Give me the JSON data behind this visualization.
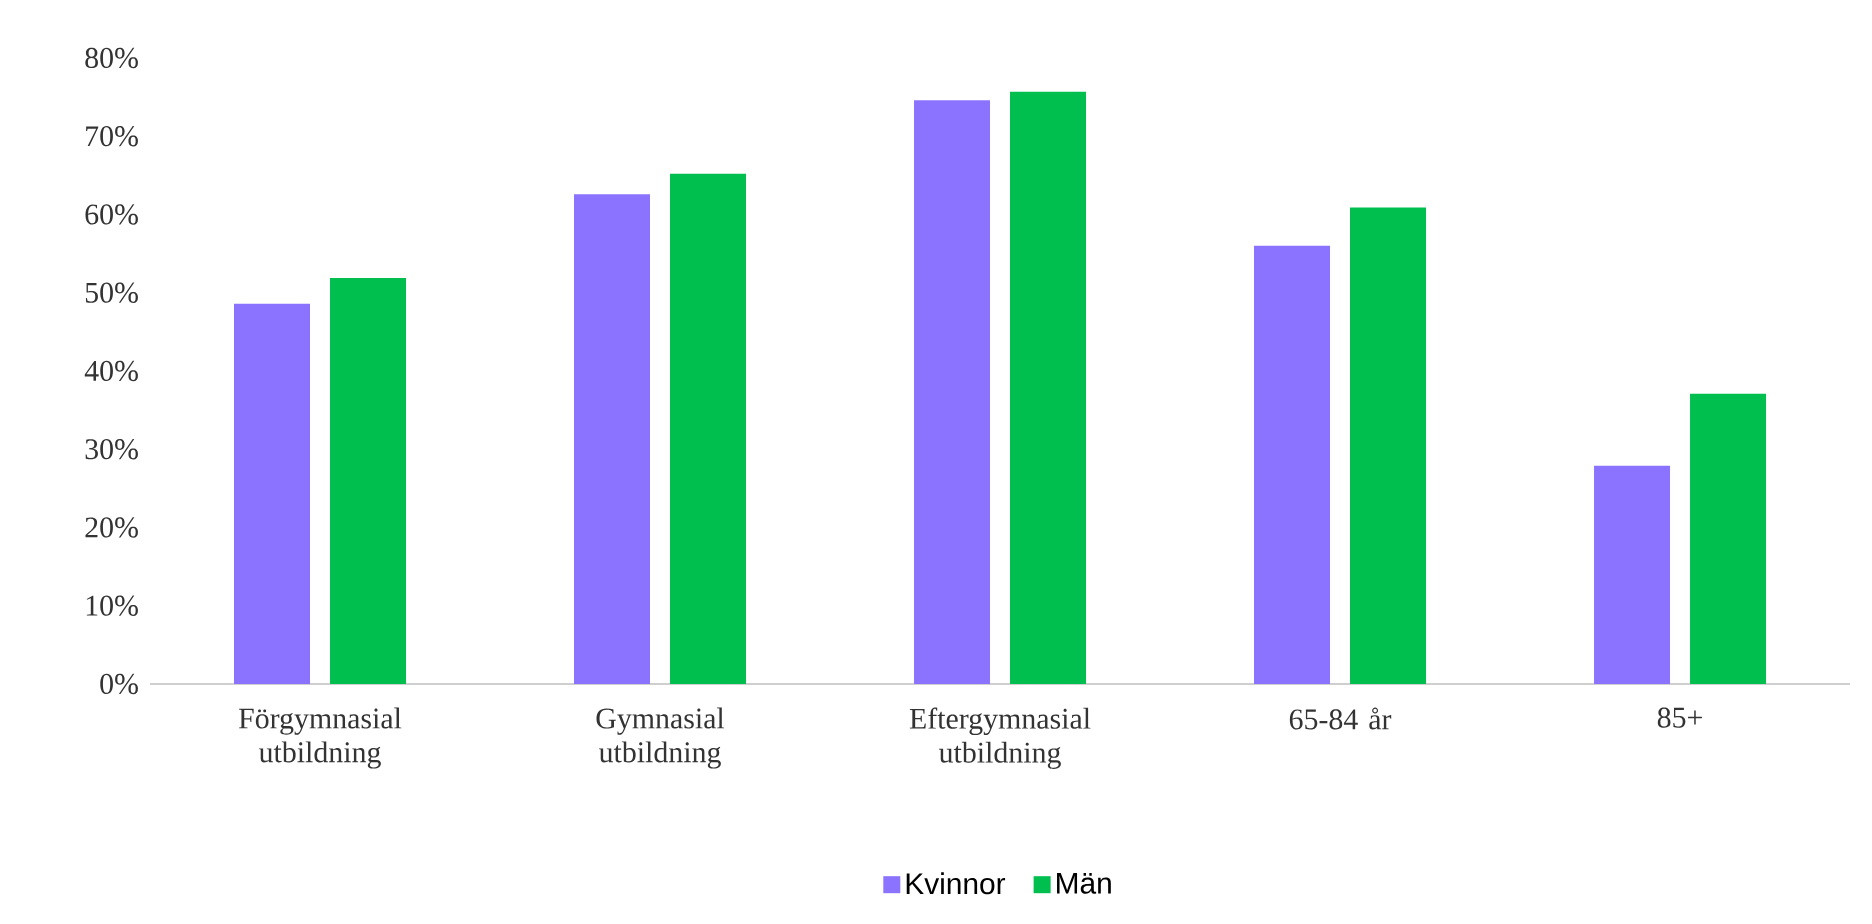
{
  "chart_data": {
    "type": "bar",
    "categories": [
      "Förgymnasial utbildning",
      "Gymnasial utbildning",
      "Eftergymnasial utbildning",
      "65-84 år",
      "85+"
    ],
    "series": [
      {
        "name": "Kvinnor",
        "color": "#8c73ff",
        "values": [
          48.6,
          62.6,
          74.6,
          56.0,
          27.9
        ]
      },
      {
        "name": "Män",
        "color": "#00bf4f",
        "values": [
          51.9,
          65.2,
          75.7,
          60.9,
          37.1
        ]
      }
    ],
    "ylim": [
      0,
      80
    ],
    "yticks": [
      {
        "value": 0,
        "label": "0%"
      },
      {
        "value": 10,
        "label": "10%"
      },
      {
        "value": 20,
        "label": "20%"
      },
      {
        "value": 30,
        "label": "30%"
      },
      {
        "value": 40,
        "label": "40%"
      },
      {
        "value": 50,
        "label": "50%"
      },
      {
        "value": 60,
        "label": "60%"
      },
      {
        "value": 70,
        "label": "70%"
      },
      {
        "value": 80,
        "label": "80%"
      }
    ],
    "legend": "bottom"
  }
}
